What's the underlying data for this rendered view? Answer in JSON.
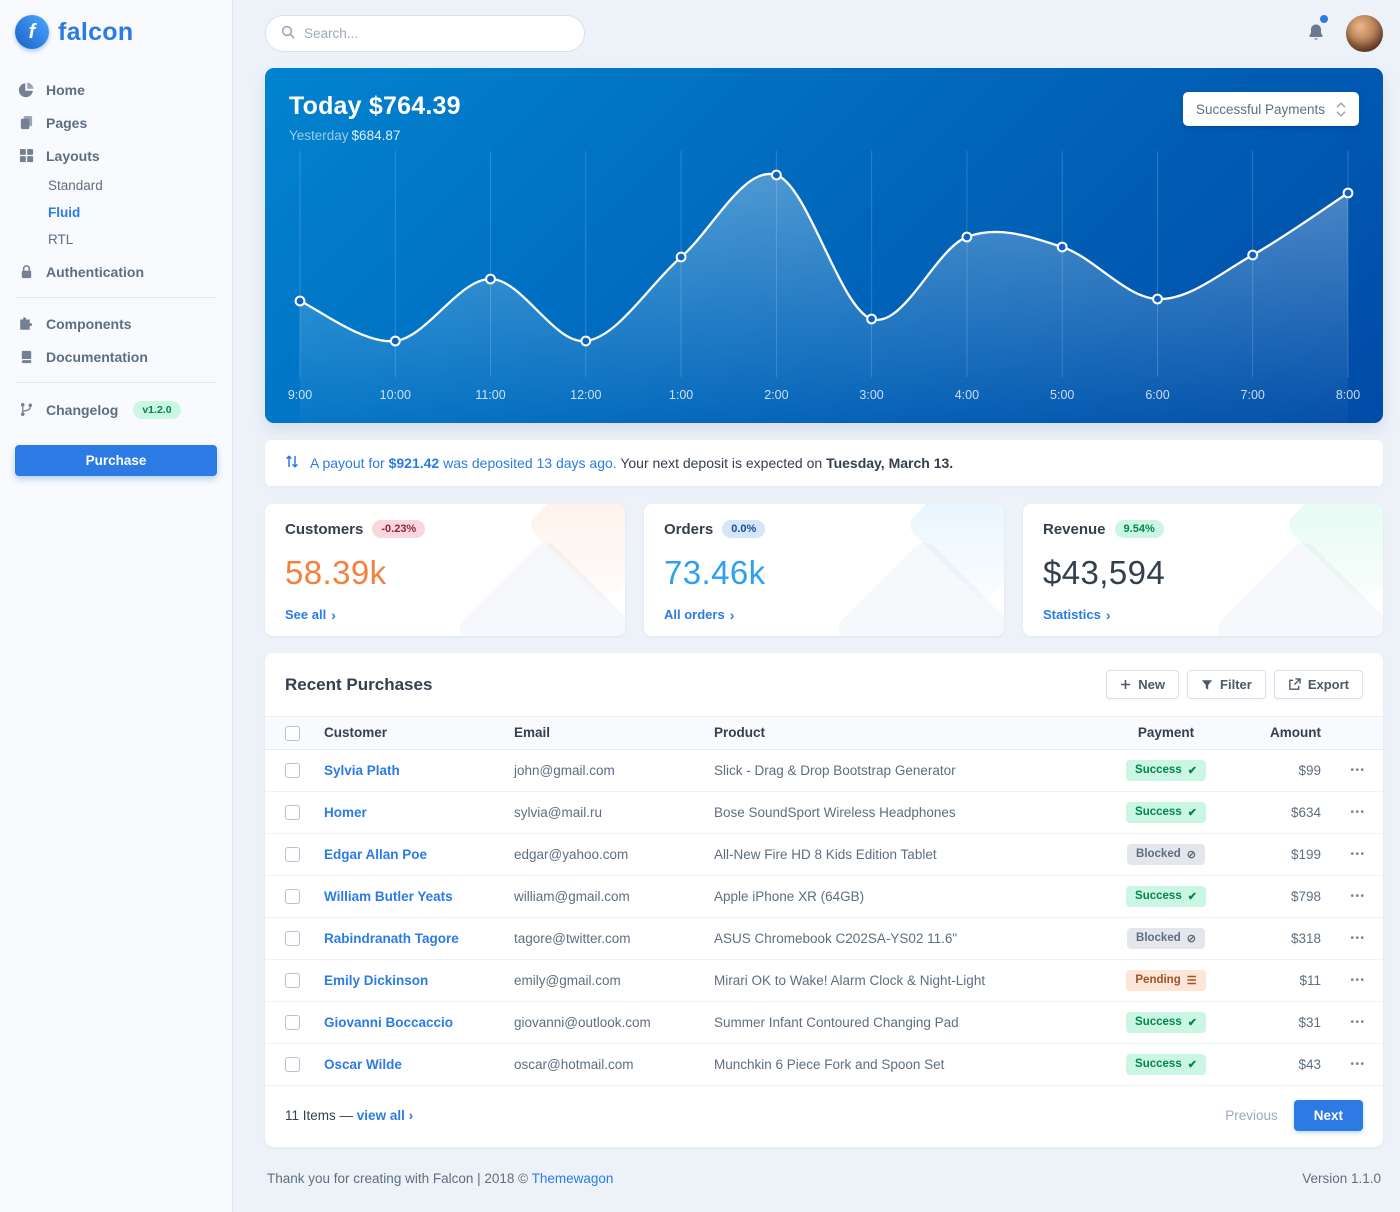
{
  "app": {
    "brand": "falcon",
    "footer_text": "Thank you for creating with Falcon | 2018 © ",
    "footer_link": "Themewagon",
    "version": "Version 1.1.0"
  },
  "topbar": {
    "search_placeholder": "Search..."
  },
  "sidebar": {
    "items": [
      {
        "label": "Home",
        "icon": "pie-chart-icon"
      },
      {
        "label": "Pages",
        "icon": "copy-icon"
      },
      {
        "label": "Layouts",
        "icon": "grid-icon"
      },
      {
        "label": "Authentication",
        "icon": "lock-icon"
      },
      {
        "label": "Components",
        "icon": "puzzle-icon"
      },
      {
        "label": "Documentation",
        "icon": "book-icon"
      },
      {
        "label": "Changelog",
        "icon": "code-branch-icon",
        "badge": "v1.2.0"
      }
    ],
    "layouts_children": [
      {
        "label": "Standard",
        "active": false
      },
      {
        "label": "Fluid",
        "active": true
      },
      {
        "label": "RTL",
        "active": false
      }
    ],
    "purchase_label": "Purchase"
  },
  "chart": {
    "title": "Today $764.39",
    "subtitle_label": "Yesterday",
    "subtitle_value": "$684.87",
    "selector_label": "Successful Payments"
  },
  "chart_data": {
    "type": "line",
    "title": "Today $764.39",
    "series_label": "Successful Payments",
    "x": [
      "9:00",
      "10:00",
      "11:00",
      "12:00",
      "1:00",
      "2:00",
      "3:00",
      "4:00",
      "5:00",
      "6:00",
      "7:00",
      "8:00"
    ],
    "values": [
      30,
      10,
      41,
      10,
      52,
      93,
      21,
      62,
      57,
      31,
      53,
      84
    ],
    "ylim": [
      0,
      100
    ],
    "grid": "vertical",
    "line_color": "#ffffff",
    "bg_gradient": [
      "#0183d0",
      "#014ba7"
    ]
  },
  "payout": {
    "link_text": "A payout for",
    "amount": "$921.42",
    "link_text2": "was deposited 13 days ago.",
    "rest": "Your next deposit is expected on",
    "date": "Tuesday, March 13."
  },
  "stats": [
    {
      "title": "Customers",
      "badge": "-0.23%",
      "badge_type": "danger",
      "value": "58.39k",
      "link": "See all"
    },
    {
      "title": "Orders",
      "badge": "0.0%",
      "badge_type": "primary",
      "value": "73.46k",
      "link": "All orders"
    },
    {
      "title": "Revenue",
      "badge": "9.54%",
      "badge_type": "success",
      "value": "$43,594",
      "link": "Statistics"
    }
  ],
  "purchases": {
    "title": "Recent Purchases",
    "actions": [
      {
        "label": "New",
        "icon": "plus-icon"
      },
      {
        "label": "Filter",
        "icon": "filter-icon"
      },
      {
        "label": "Export",
        "icon": "export-icon"
      }
    ],
    "columns": [
      "Customer",
      "Email",
      "Product",
      "Payment",
      "Amount"
    ],
    "rows": [
      {
        "customer": "Sylvia Plath",
        "email": "john@gmail.com",
        "product": "Slick - Drag & Drop Bootstrap Generator",
        "payment": {
          "label": "Success",
          "type": "success",
          "icon": "check-icon"
        },
        "amount": "$99"
      },
      {
        "customer": "Homer",
        "email": "sylvia@mail.ru",
        "product": "Bose SoundSport Wireless Headphones",
        "payment": {
          "label": "Success",
          "type": "success",
          "icon": "check-icon"
        },
        "amount": "$634"
      },
      {
        "customer": "Edgar Allan Poe",
        "email": "edgar@yahoo.com",
        "product": "All-New Fire HD 8 Kids Edition Tablet",
        "payment": {
          "label": "Blocked",
          "type": "blocked",
          "icon": "ban-icon"
        },
        "amount": "$199"
      },
      {
        "customer": "William Butler Yeats",
        "email": "william@gmail.com",
        "product": "Apple iPhone XR (64GB)",
        "payment": {
          "label": "Success",
          "type": "success",
          "icon": "check-icon"
        },
        "amount": "$798"
      },
      {
        "customer": "Rabindranath Tagore",
        "email": "tagore@twitter.com",
        "product": "ASUS Chromebook C202SA-YS02 11.6\"",
        "payment": {
          "label": "Blocked",
          "type": "blocked",
          "icon": "ban-icon"
        },
        "amount": "$318"
      },
      {
        "customer": "Emily Dickinson",
        "email": "emily@gmail.com",
        "product": "Mirari OK to Wake! Alarm Clock & Night-Light",
        "payment": {
          "label": "Pending",
          "type": "pending",
          "icon": "stream-icon"
        },
        "amount": "$11"
      },
      {
        "customer": "Giovanni Boccaccio",
        "email": "giovanni@outlook.com",
        "product": "Summer Infant Contoured Changing Pad",
        "payment": {
          "label": "Success",
          "type": "success",
          "icon": "check-icon"
        },
        "amount": "$31"
      },
      {
        "customer": "Oscar Wilde",
        "email": "oscar@hotmail.com",
        "product": "Munchkin 6 Piece Fork and Spoon Set",
        "payment": {
          "label": "Success",
          "type": "success",
          "icon": "check-icon"
        },
        "amount": "$43"
      }
    ],
    "footer": {
      "items_text": "11 Items —",
      "view_all": "view all",
      "previous": "Previous",
      "next": "Next"
    }
  },
  "badge_icons": {
    "check-icon": "✔",
    "ban-icon": "⊘",
    "stream-icon": "☰"
  },
  "colors": {
    "primary": "#2c7be5",
    "background": "#edf2f9",
    "chart_gradient": [
      "#0183d0",
      "#014ba7"
    ],
    "customers_value": "#f5803e",
    "orders_value": "#2f9ff3",
    "revenue_value": "#344050",
    "success": "#00864e",
    "pending": "#9d5228",
    "danger": "#932338"
  }
}
